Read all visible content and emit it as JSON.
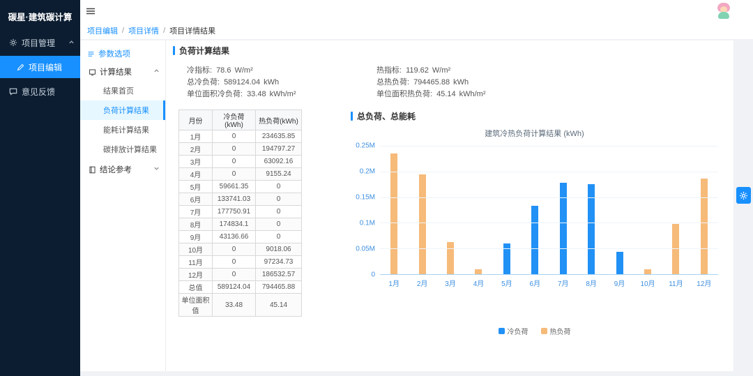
{
  "app_title": "碳星·建筑碳计算",
  "sidebar": {
    "menu_project_mgmt": "项目管理",
    "menu_project_edit": "项目编辑",
    "menu_feedback": "意见反馈"
  },
  "breadcrumb": [
    "项目编辑",
    "项目详情",
    "项目详情结果"
  ],
  "nav_panel": {
    "title": "参数选项",
    "group1": {
      "label": "计算结果",
      "items": [
        "结果首页",
        "负荷计算结果",
        "能耗计算结果",
        "碳排放计算结果"
      ],
      "active_index": 1
    },
    "group2": {
      "label": "结论参考"
    }
  },
  "content": {
    "section_load_title": "负荷计算结果",
    "cold_stats": [
      {
        "label": "冷指标:",
        "value": "78.6",
        "unit": "W/m²"
      },
      {
        "label": "总冷负荷:",
        "value": "589124.04",
        "unit": "kWh"
      },
      {
        "label": "单位面积冷负荷:",
        "value": "33.48",
        "unit": "kWh/m²"
      }
    ],
    "hot_stats": [
      {
        "label": "热指标:",
        "value": "119.62",
        "unit": "W/m²"
      },
      {
        "label": "总热负荷:",
        "value": "794465.88",
        "unit": "kWh"
      },
      {
        "label": "单位面积热负荷:",
        "value": "45.14",
        "unit": "kWh/m²"
      }
    ],
    "section_total_title": "总负荷、总能耗"
  },
  "table": {
    "headers": [
      "月份",
      "冷负荷(kWh)",
      "热负荷(kWh)"
    ],
    "rows": [
      [
        "1月",
        "0",
        "234635.85"
      ],
      [
        "2月",
        "0",
        "194797.27"
      ],
      [
        "3月",
        "0",
        "63092.16"
      ],
      [
        "4月",
        "0",
        "9155.24"
      ],
      [
        "5月",
        "59661.35",
        "0"
      ],
      [
        "6月",
        "133741.03",
        "0"
      ],
      [
        "7月",
        "177750.91",
        "0"
      ],
      [
        "8月",
        "174834.1",
        "0"
      ],
      [
        "9月",
        "43136.66",
        "0"
      ],
      [
        "10月",
        "0",
        "9018.06"
      ],
      [
        "11月",
        "0",
        "97234.73"
      ],
      [
        "12月",
        "0",
        "186532.57"
      ],
      [
        "总值",
        "589124.04",
        "794465.88"
      ],
      [
        "单位面积值",
        "33.48",
        "45.14"
      ]
    ]
  },
  "chart_data": {
    "type": "bar",
    "title": "建筑冷热负荷计算结果 (kWh)",
    "categories": [
      "1月",
      "2月",
      "3月",
      "4月",
      "5月",
      "6月",
      "7月",
      "8月",
      "9月",
      "10月",
      "11月",
      "12月"
    ],
    "series": [
      {
        "name": "冷负荷",
        "color": "#2191f5",
        "values": [
          0,
          0,
          0,
          0,
          59661.35,
          133741.03,
          177750.91,
          174834.1,
          43136.66,
          0,
          0,
          0
        ]
      },
      {
        "name": "热负荷",
        "color": "#f6ba79",
        "values": [
          234635.85,
          194797.27,
          63092.16,
          9155.24,
          0,
          0,
          0,
          0,
          0,
          9018.06,
          97234.73,
          186532.57
        ]
      }
    ],
    "xlabel": "",
    "ylabel": "",
    "ylim": [
      0,
      250000
    ],
    "yticks": [
      {
        "value": 250000,
        "label": "0.25M"
      },
      {
        "value": 200000,
        "label": "0.2M"
      },
      {
        "value": 150000,
        "label": "0.15M"
      },
      {
        "value": 100000,
        "label": "0.1M"
      },
      {
        "value": 50000,
        "label": "0.05M"
      },
      {
        "value": 0,
        "label": "0"
      }
    ],
    "grid": true,
    "legend_position": "bottom"
  },
  "colors": {
    "accent": "#1890ff",
    "sidebar_bg": "#0c1d31",
    "nav_active_bg": "#e6f7ff",
    "cold_bar": "#2191f5",
    "hot_bar": "#f6ba79",
    "axis_label": "#3d8fe0"
  }
}
